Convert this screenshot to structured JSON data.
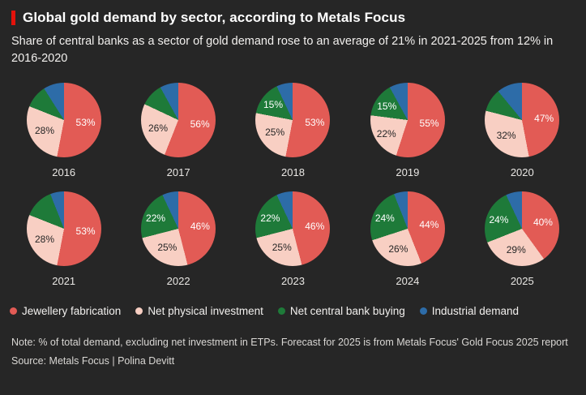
{
  "header": {
    "title": "Global gold demand by sector, according to Metals Focus",
    "subtitle": "Share of central banks as a sector of gold demand rose to an average of 21% in 2021-2025 from 12% in 2016-2020",
    "accent_color": "#e3120b"
  },
  "chart_data": {
    "type": "pie",
    "title": "Global gold demand by sector, according to Metals Focus",
    "subtitle": "Share of central banks as a sector of gold demand rose to an average of 21% in 2021-2025 from 12% in 2016-2020",
    "series_names": [
      "Jewellery fabrication",
      "Net physical investment",
      "Net central bank buying",
      "Industrial demand"
    ],
    "colors": [
      "#e25b55",
      "#f8cfc3",
      "#1e7a39",
      "#2d6ca8"
    ],
    "label_text_colors": [
      "#ffffff",
      "#262626",
      "#ffffff",
      "#ffffff"
    ],
    "unit": "%",
    "pies": [
      {
        "year": "2016",
        "values": [
          53,
          28,
          10,
          9
        ],
        "labels": [
          "53%",
          "28%",
          null,
          null
        ]
      },
      {
        "year": "2017",
        "values": [
          56,
          26,
          10,
          8
        ],
        "labels": [
          "56%",
          "26%",
          null,
          null
        ]
      },
      {
        "year": "2018",
        "values": [
          53,
          25,
          15,
          7
        ],
        "labels": [
          "53%",
          "25%",
          "15%",
          null
        ]
      },
      {
        "year": "2019",
        "values": [
          55,
          22,
          15,
          8
        ],
        "labels": [
          "55%",
          "22%",
          "15%",
          null
        ]
      },
      {
        "year": "2020",
        "values": [
          47,
          32,
          10,
          11
        ],
        "labels": [
          "47%",
          "32%",
          null,
          null
        ]
      },
      {
        "year": "2021",
        "values": [
          53,
          28,
          13,
          6
        ],
        "labels": [
          "53%",
          "28%",
          null,
          null
        ]
      },
      {
        "year": "2022",
        "values": [
          46,
          25,
          22,
          7
        ],
        "labels": [
          "46%",
          "25%",
          "22%",
          null
        ]
      },
      {
        "year": "2023",
        "values": [
          46,
          25,
          22,
          7
        ],
        "labels": [
          "46%",
          "25%",
          "22%",
          null
        ]
      },
      {
        "year": "2024",
        "values": [
          44,
          26,
          24,
          6
        ],
        "labels": [
          "44%",
          "26%",
          "24%",
          null
        ]
      },
      {
        "year": "2025",
        "values": [
          40,
          29,
          24,
          7
        ],
        "labels": [
          "40%",
          "29%",
          "24%",
          null
        ]
      }
    ],
    "legend_position": "bottom",
    "note": "Note: % of total demand, excluding net investment in ETPs. Forecast for 2025 is from Metals Focus' Gold Focus 2025 report",
    "source": "Source: Metals Focus | Polina Devitt"
  },
  "legend": {
    "items": [
      {
        "label": "Jewellery fabrication"
      },
      {
        "label": "Net physical investment"
      },
      {
        "label": "Net central bank buying"
      },
      {
        "label": "Industrial demand"
      }
    ]
  },
  "footer": {
    "note": "Note: % of total demand, excluding net investment in ETPs. Forecast for 2025 is from Metals Focus' Gold Focus 2025 report",
    "source": "Source: Metals Focus | Polina Devitt"
  }
}
